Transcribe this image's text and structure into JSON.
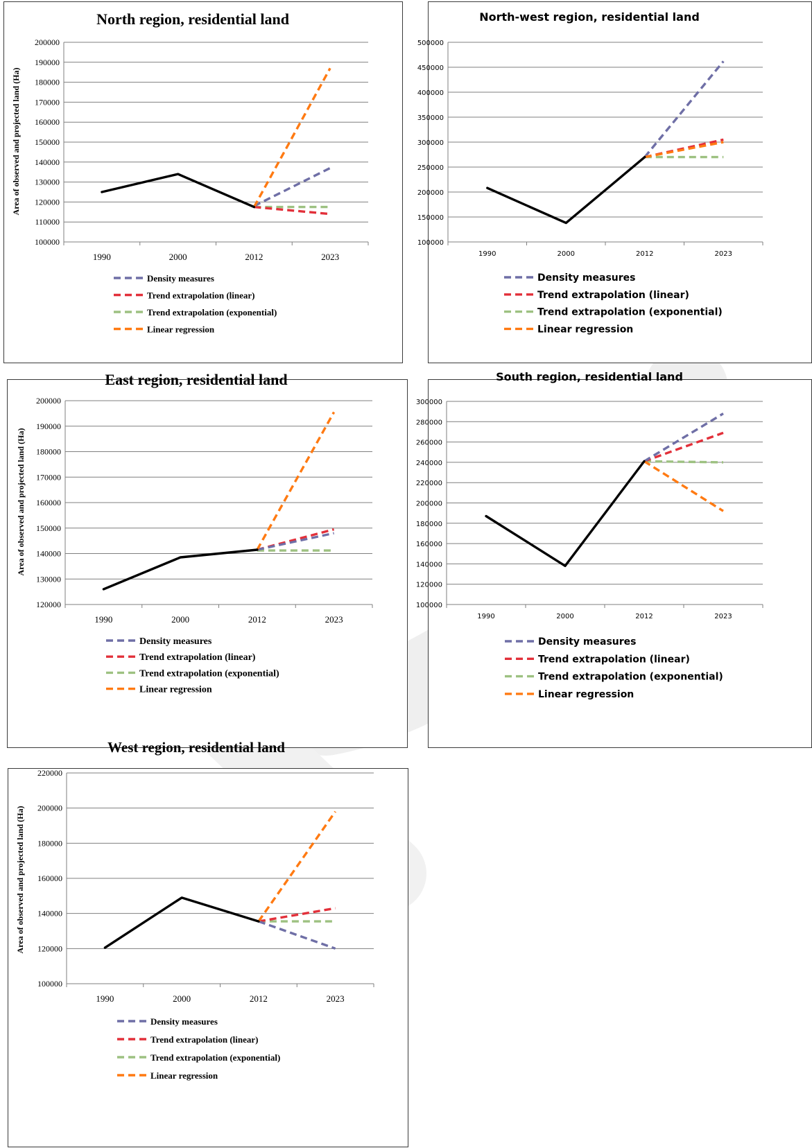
{
  "colors": {
    "observed": "#000000",
    "density": "#6f6fa6",
    "trend_linear": "#e2303a",
    "trend_exponential": "#9dc181",
    "linear_regression": "#ff7a12",
    "grid": "#7f7f7f"
  },
  "legend_labels": {
    "density": "Density measures",
    "trend_linear": "Trend extrapolation (linear)",
    "trend_exponential": "Trend extrapolation (exponential)",
    "linear_regression": "Linear regression"
  },
  "chart_data": [
    {
      "id": "north",
      "type": "line",
      "title": "North region, residential land",
      "ylabel": "Area of observed and projected land (Ha)",
      "xlabel": "",
      "categories": [
        "1990",
        "2000",
        "2012",
        "2023"
      ],
      "ylim": [
        100000,
        200000
      ],
      "yticks": [
        "100000",
        "110000",
        "120000",
        "130000",
        "140000",
        "150000",
        "160000",
        "170000",
        "180000",
        "190000",
        "200000"
      ],
      "grid": true,
      "legend_position": "bottom",
      "series": [
        {
          "key": "observed",
          "values": [
            125000,
            134000,
            117500,
            null
          ]
        },
        {
          "key": "density",
          "name": "Density measures",
          "values": [
            null,
            null,
            118000,
            137000
          ]
        },
        {
          "key": "trend_linear",
          "name": "Trend extrapolation (linear)",
          "values": [
            null,
            null,
            117500,
            114000
          ]
        },
        {
          "key": "trend_exponential",
          "name": "Trend extrapolation (exponential)",
          "values": [
            null,
            null,
            117500,
            117500
          ]
        },
        {
          "key": "linear_regression",
          "name": "Linear regression",
          "values": [
            null,
            null,
            117500,
            187000
          ]
        }
      ]
    },
    {
      "id": "northwest",
      "type": "line",
      "title": "North-west region, residential land",
      "ylabel": "",
      "xlabel": "",
      "categories": [
        "1990",
        "2000",
        "2012",
        "2023"
      ],
      "ylim": [
        100000,
        500000
      ],
      "yticks": [
        "100000",
        "150000",
        "200000",
        "250000",
        "300000",
        "350000",
        "400000",
        "450000",
        "500000"
      ],
      "grid": true,
      "legend_position": "bottom",
      "series": [
        {
          "key": "observed",
          "values": [
            208000,
            138000,
            270000,
            null
          ]
        },
        {
          "key": "density",
          "name": "Density measures",
          "values": [
            null,
            null,
            270000,
            462000
          ]
        },
        {
          "key": "trend_linear",
          "name": "Trend extrapolation (linear)",
          "values": [
            null,
            null,
            270000,
            305000
          ]
        },
        {
          "key": "trend_exponential",
          "name": "Trend extrapolation (exponential)",
          "values": [
            null,
            null,
            270000,
            270000
          ]
        },
        {
          "key": "linear_regression",
          "name": "Linear regression",
          "values": [
            null,
            null,
            270000,
            300000
          ]
        }
      ]
    },
    {
      "id": "east",
      "type": "line",
      "title": "East region, residential land",
      "ylabel": "Area of observed and projected land (Ha)",
      "xlabel": "",
      "categories": [
        "1990",
        "2000",
        "2012",
        "2023"
      ],
      "ylim": [
        120000,
        200000
      ],
      "yticks": [
        "120000",
        "130000",
        "140000",
        "150000",
        "160000",
        "170000",
        "180000",
        "190000",
        "200000"
      ],
      "grid": true,
      "legend_position": "bottom",
      "series": [
        {
          "key": "observed",
          "values": [
            126000,
            138500,
            141500,
            null
          ]
        },
        {
          "key": "density",
          "name": "Density measures",
          "values": [
            null,
            null,
            141500,
            148000
          ]
        },
        {
          "key": "trend_linear",
          "name": "Trend extrapolation (linear)",
          "values": [
            null,
            null,
            141500,
            149500
          ]
        },
        {
          "key": "trend_exponential",
          "name": "Trend extrapolation (exponential)",
          "values": [
            null,
            null,
            141200,
            141200
          ]
        },
        {
          "key": "linear_regression",
          "name": "Linear regression",
          "values": [
            null,
            null,
            141500,
            195500
          ]
        }
      ]
    },
    {
      "id": "south",
      "type": "line",
      "title": "South region, residential land",
      "ylabel": "",
      "xlabel": "",
      "categories": [
        "1990",
        "2000",
        "2012",
        "2023"
      ],
      "ylim": [
        100000,
        300000
      ],
      "yticks": [
        "100000",
        "120000",
        "140000",
        "160000",
        "180000",
        "200000",
        "220000",
        "240000",
        "260000",
        "280000",
        "300000"
      ],
      "grid": true,
      "legend_position": "bottom",
      "series": [
        {
          "key": "observed",
          "values": [
            187000,
            138000,
            241000,
            null
          ]
        },
        {
          "key": "density",
          "name": "Density measures",
          "values": [
            null,
            null,
            241000,
            288000
          ]
        },
        {
          "key": "trend_linear",
          "name": "Trend extrapolation (linear)",
          "values": [
            null,
            null,
            241000,
            269000
          ]
        },
        {
          "key": "trend_exponential",
          "name": "Trend extrapolation (exponential)",
          "values": [
            null,
            null,
            241000,
            240000
          ]
        },
        {
          "key": "linear_regression",
          "name": "Linear regression",
          "values": [
            null,
            null,
            241000,
            192000
          ]
        }
      ]
    },
    {
      "id": "west",
      "type": "line",
      "title": "West region, residential land",
      "ylabel": "Area of observed and projected land (Ha)",
      "xlabel": "",
      "categories": [
        "1990",
        "2000",
        "2012",
        "2023"
      ],
      "ylim": [
        100000,
        220000
      ],
      "yticks": [
        "100000",
        "120000",
        "140000",
        "160000",
        "180000",
        "200000",
        "220000"
      ],
      "grid": true,
      "legend_position": "bottom",
      "series": [
        {
          "key": "observed",
          "values": [
            120500,
            149000,
            135500,
            null
          ]
        },
        {
          "key": "density",
          "name": "Density measures",
          "values": [
            null,
            null,
            135500,
            120000
          ]
        },
        {
          "key": "trend_linear",
          "name": "Trend extrapolation (linear)",
          "values": [
            null,
            null,
            135500,
            143000
          ]
        },
        {
          "key": "trend_exponential",
          "name": "Trend extrapolation (exponential)",
          "values": [
            null,
            null,
            135500,
            135500
          ]
        },
        {
          "key": "linear_regression",
          "name": "Linear regression",
          "values": [
            null,
            null,
            135500,
            198000
          ]
        }
      ]
    }
  ]
}
